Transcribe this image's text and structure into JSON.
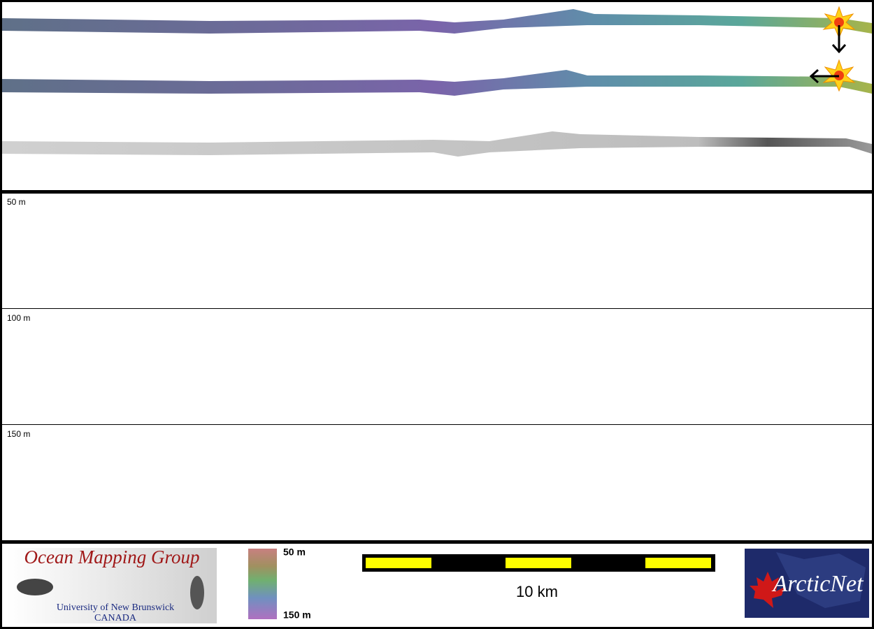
{
  "profile_panel": {
    "depth_labels": [
      "50 m",
      "100 m",
      "150 m"
    ]
  },
  "legend": {
    "color_scale": {
      "top": "50 m",
      "bottom": "150 m"
    },
    "scale_bar": "10 km"
  },
  "logos": {
    "omg": {
      "title": "Ocean Mapping Group",
      "university": "University of New Brunswick",
      "country": "CANADA"
    },
    "arcticnet": "ArcticNet"
  }
}
